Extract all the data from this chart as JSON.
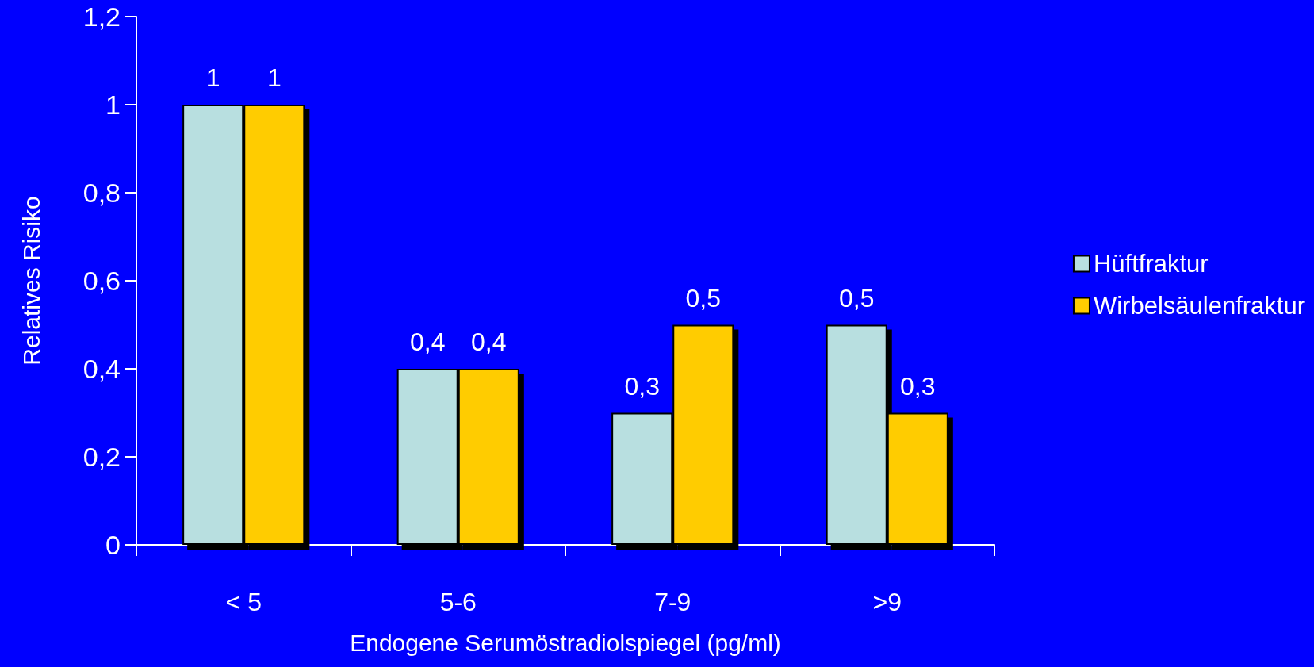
{
  "chart_data": {
    "type": "bar",
    "xlabel": "Endogene Serumöstradiolspiegel (pg/ml)",
    "ylabel": "Relatives Risiko",
    "categories": [
      "< 5",
      "5-6",
      "7-9",
      ">9"
    ],
    "series": [
      {
        "name": "Hüftfraktur",
        "color": "#b8dfe0",
        "values": [
          1,
          0.4,
          0.3,
          0.5
        ],
        "value_labels": [
          "1",
          "0,4",
          "0,3",
          "0,5"
        ]
      },
      {
        "name": "Wirbelsäulenfraktur",
        "color": "#ffcc00",
        "values": [
          1,
          0.4,
          0.5,
          0.3
        ],
        "value_labels": [
          "1",
          "0,4",
          "0,5",
          "0,3"
        ]
      }
    ],
    "ylim": [
      0,
      1.2
    ],
    "yticks": [
      0,
      {
        "value": 0.2,
        "label": "0,2"
      },
      {
        "value": 0.4,
        "label": "0,4"
      },
      {
        "value": 0.6,
        "label": "0,6"
      },
      {
        "value": 0.8,
        "label": "0,8"
      },
      1,
      {
        "value": 1.2,
        "label": "1,2"
      }
    ],
    "grid": false,
    "legend": "right"
  }
}
